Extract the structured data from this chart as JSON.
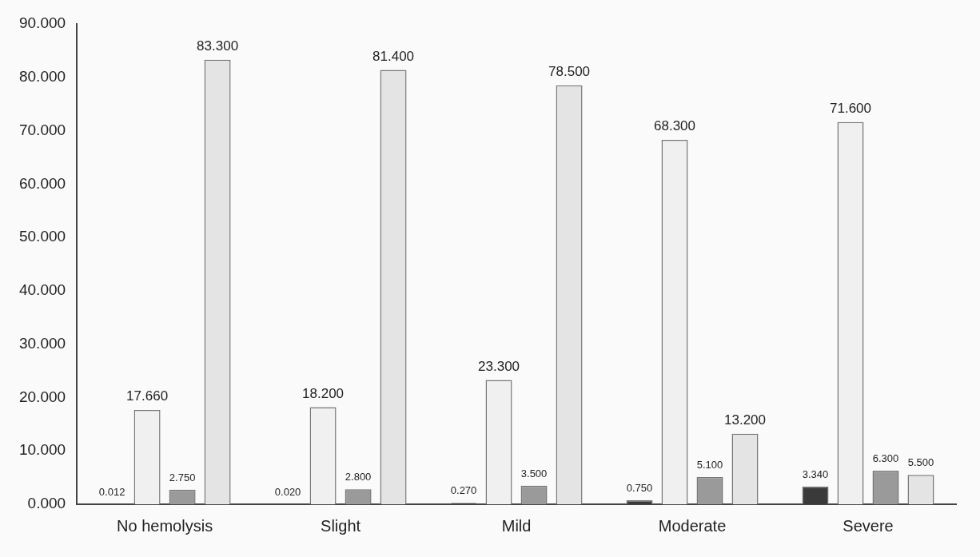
{
  "chart_data": {
    "type": "bar",
    "categories": [
      "No hemolysis",
      "Slight",
      "Mild",
      "Moderate",
      "Severe"
    ],
    "series": [
      {
        "color": "#3a3a3a",
        "values": [
          0.012,
          0.02,
          0.27,
          0.75,
          3.34
        ],
        "value_labels": [
          "0.012",
          "0.020",
          "0.270",
          "0.750",
          "3.340"
        ]
      },
      {
        "color": "#f0f0f0",
        "values": [
          17.66,
          18.2,
          23.3,
          68.3,
          71.6
        ],
        "value_labels": [
          "17.660",
          "18.200",
          "23.300",
          "68.300",
          "71.600"
        ]
      },
      {
        "color": "#9a9a9a",
        "values": [
          2.75,
          2.8,
          3.5,
          5.1,
          6.3
        ],
        "value_labels": [
          "2.750",
          "2.800",
          "3.500",
          "5.100",
          "6.300"
        ]
      },
      {
        "color": "#e4e4e4",
        "values": [
          83.3,
          81.4,
          78.5,
          13.2,
          5.5
        ],
        "value_labels": [
          "83.300",
          "81.400",
          "78.500",
          "13.200",
          "5.500"
        ]
      }
    ],
    "ylim": [
      0,
      90
    ],
    "yticks": [
      {
        "value": 0,
        "label": "0.000"
      },
      {
        "value": 10,
        "label": "10.000"
      },
      {
        "value": 20,
        "label": "20.000"
      },
      {
        "value": 30,
        "label": "30.000"
      },
      {
        "value": 40,
        "label": "40.000"
      },
      {
        "value": 50,
        "label": "50.000"
      },
      {
        "value": 60,
        "label": "60.000"
      },
      {
        "value": 70,
        "label": "70.000"
      },
      {
        "value": 80,
        "label": "80.000"
      },
      {
        "value": 90,
        "label": "90.000"
      }
    ],
    "grid": false,
    "legend": false
  }
}
